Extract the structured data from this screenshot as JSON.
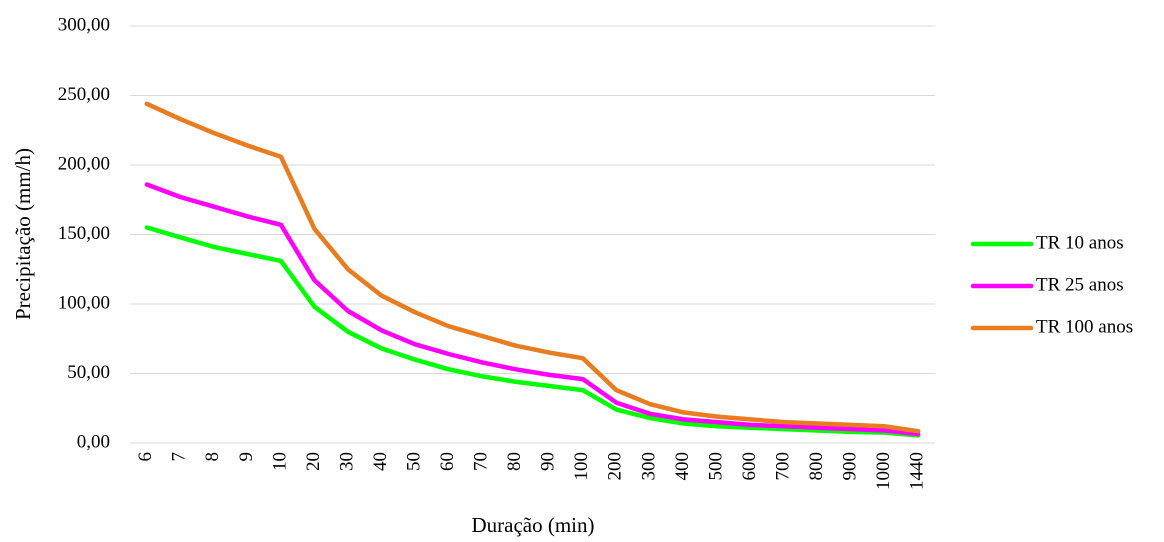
{
  "chart_data": {
    "type": "line",
    "title": "",
    "xlabel": "Duração (min)",
    "ylabel": "Precipitação (mm/h)",
    "ylim": [
      0,
      300
    ],
    "yticks": [
      "0,00",
      "50,00",
      "100,00",
      "150,00",
      "200,00",
      "250,00",
      "300,00"
    ],
    "categories": [
      "6",
      "7",
      "8",
      "9",
      "10",
      "20",
      "30",
      "40",
      "50",
      "60",
      "70",
      "80",
      "90",
      "100",
      "200",
      "300",
      "400",
      "500",
      "600",
      "700",
      "800",
      "900",
      "1000",
      "1440"
    ],
    "grid": true,
    "legend_position": "right",
    "series": [
      {
        "name": "TR 10 anos",
        "color": "#00ff00",
        "values": [
          155,
          148,
          141,
          136,
          131,
          98,
          80,
          68,
          60,
          53,
          48,
          44,
          41,
          38,
          24,
          18,
          14,
          12,
          11,
          10,
          9,
          8,
          7.5,
          5.5
        ]
      },
      {
        "name": "TR 25 anos",
        "color": "#ff00ff",
        "values": [
          186,
          177,
          170,
          163,
          157,
          117,
          95,
          81,
          71,
          64,
          58,
          53,
          49,
          46,
          29,
          21,
          17,
          15,
          13,
          12,
          11,
          10,
          9,
          6.5
        ]
      },
      {
        "name": "TR 100 anos",
        "color": "#e97c1f",
        "values": [
          244,
          233,
          223,
          214,
          206,
          154,
          125,
          106,
          94,
          84,
          77,
          70,
          65,
          61,
          38,
          28,
          22,
          19,
          17,
          15,
          14,
          13,
          12,
          8.5
        ]
      }
    ]
  }
}
